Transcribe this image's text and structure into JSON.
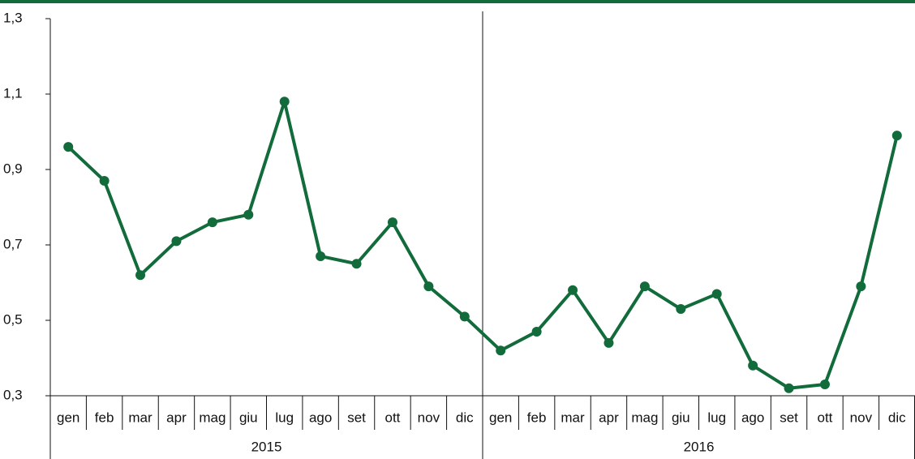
{
  "chart_data": {
    "type": "line",
    "categories": [
      "gen",
      "feb",
      "mar",
      "apr",
      "mag",
      "giu",
      "lug",
      "ago",
      "set",
      "ott",
      "nov",
      "dic",
      "gen",
      "feb",
      "mar",
      "apr",
      "mag",
      "giu",
      "lug",
      "ago",
      "set",
      "ott",
      "nov",
      "dic"
    ],
    "groups": [
      "2015",
      "2016"
    ],
    "values": [
      0.96,
      0.87,
      0.62,
      0.71,
      0.76,
      0.78,
      1.08,
      0.67,
      0.65,
      0.76,
      0.59,
      0.51,
      0.42,
      0.47,
      0.58,
      0.44,
      0.59,
      0.53,
      0.57,
      0.38,
      0.32,
      0.33,
      0.59,
      0.99
    ],
    "color": "#116b3a",
    "ylim": [
      0.3,
      1.3
    ],
    "yticks": [
      {
        "value": 0.3,
        "label": "0,3"
      },
      {
        "value": 0.5,
        "label": "0,5"
      },
      {
        "value": 0.7,
        "label": "0,7"
      },
      {
        "value": 0.9,
        "label": "0,9"
      },
      {
        "value": 1.1,
        "label": "1,1"
      },
      {
        "value": 1.3,
        "label": "1,3"
      }
    ],
    "grid": false
  }
}
